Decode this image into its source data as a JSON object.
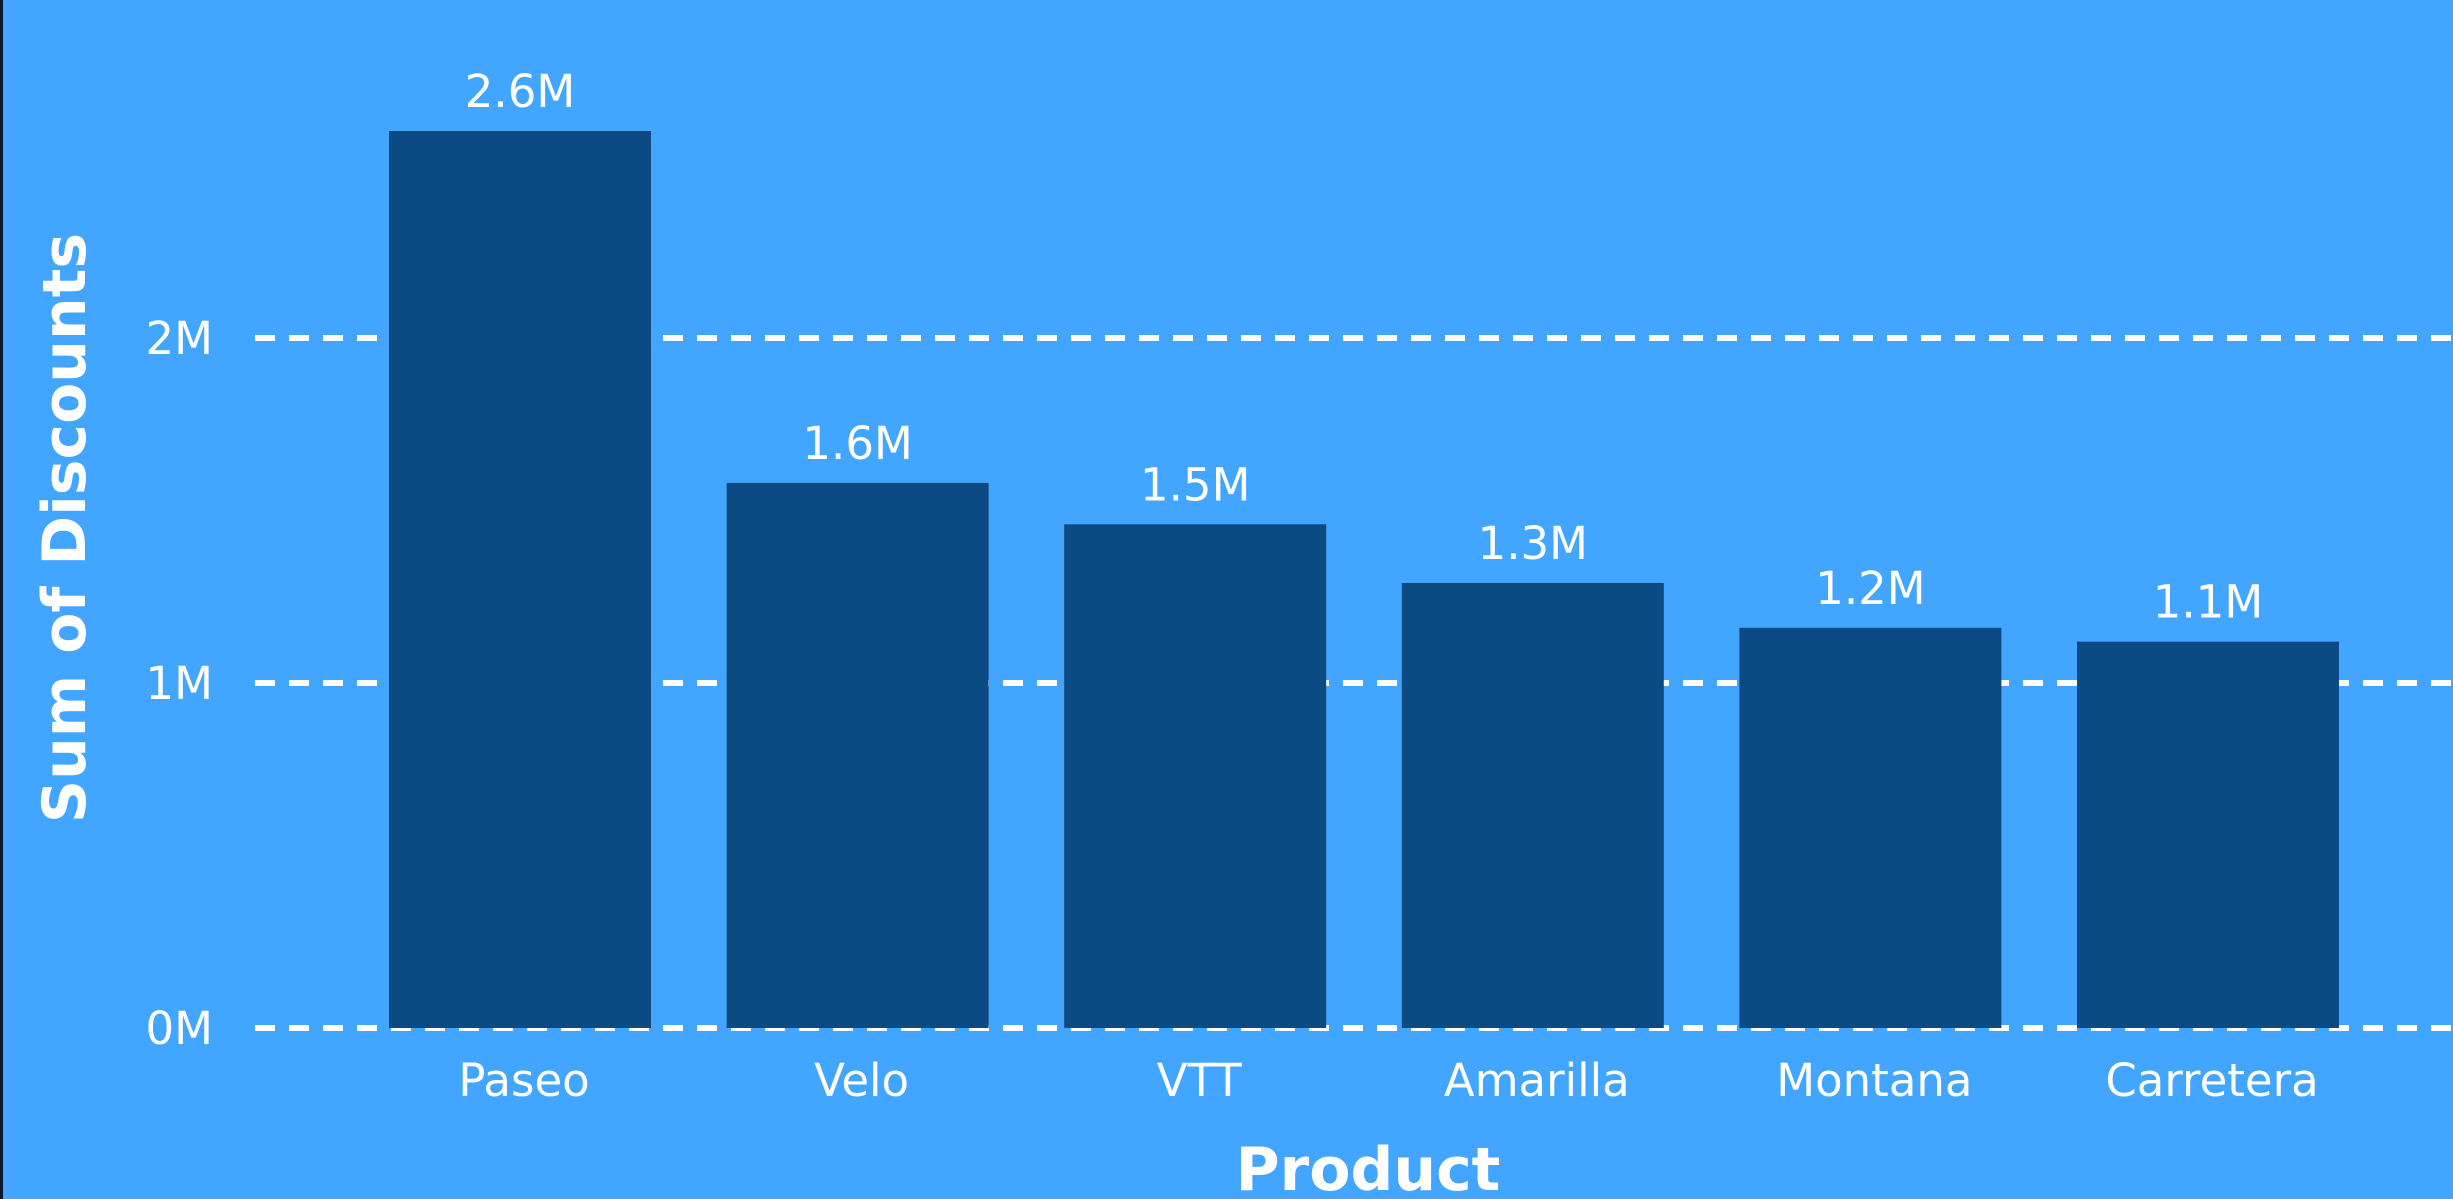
{
  "colors": {
    "background": "#42a5ff",
    "bar": "#0b4a82",
    "gridline": "#ffffff",
    "text": "#ffffff",
    "left_border": "#0b1a2e"
  },
  "chart_data": {
    "type": "bar",
    "title": "",
    "xlabel": "Product",
    "ylabel": "Sum of Discounts",
    "categories": [
      "Paseo",
      "Velo",
      "VTT",
      "Amarilla",
      "Montana",
      "Carretera"
    ],
    "values": [
      2.6,
      1.58,
      1.46,
      1.29,
      1.16,
      1.12
    ],
    "value_unit": "M",
    "data_labels": [
      "2.6M",
      "1.6M",
      "1.5M",
      "1.3M",
      "1.2M",
      "1.1M"
    ],
    "y_ticks": [
      0,
      1,
      2
    ],
    "y_tick_labels": [
      "0M",
      "1M",
      "2M"
    ],
    "ylim": [
      0,
      2.6
    ],
    "grid": true,
    "grid_style": "dashed",
    "legend": "none"
  }
}
